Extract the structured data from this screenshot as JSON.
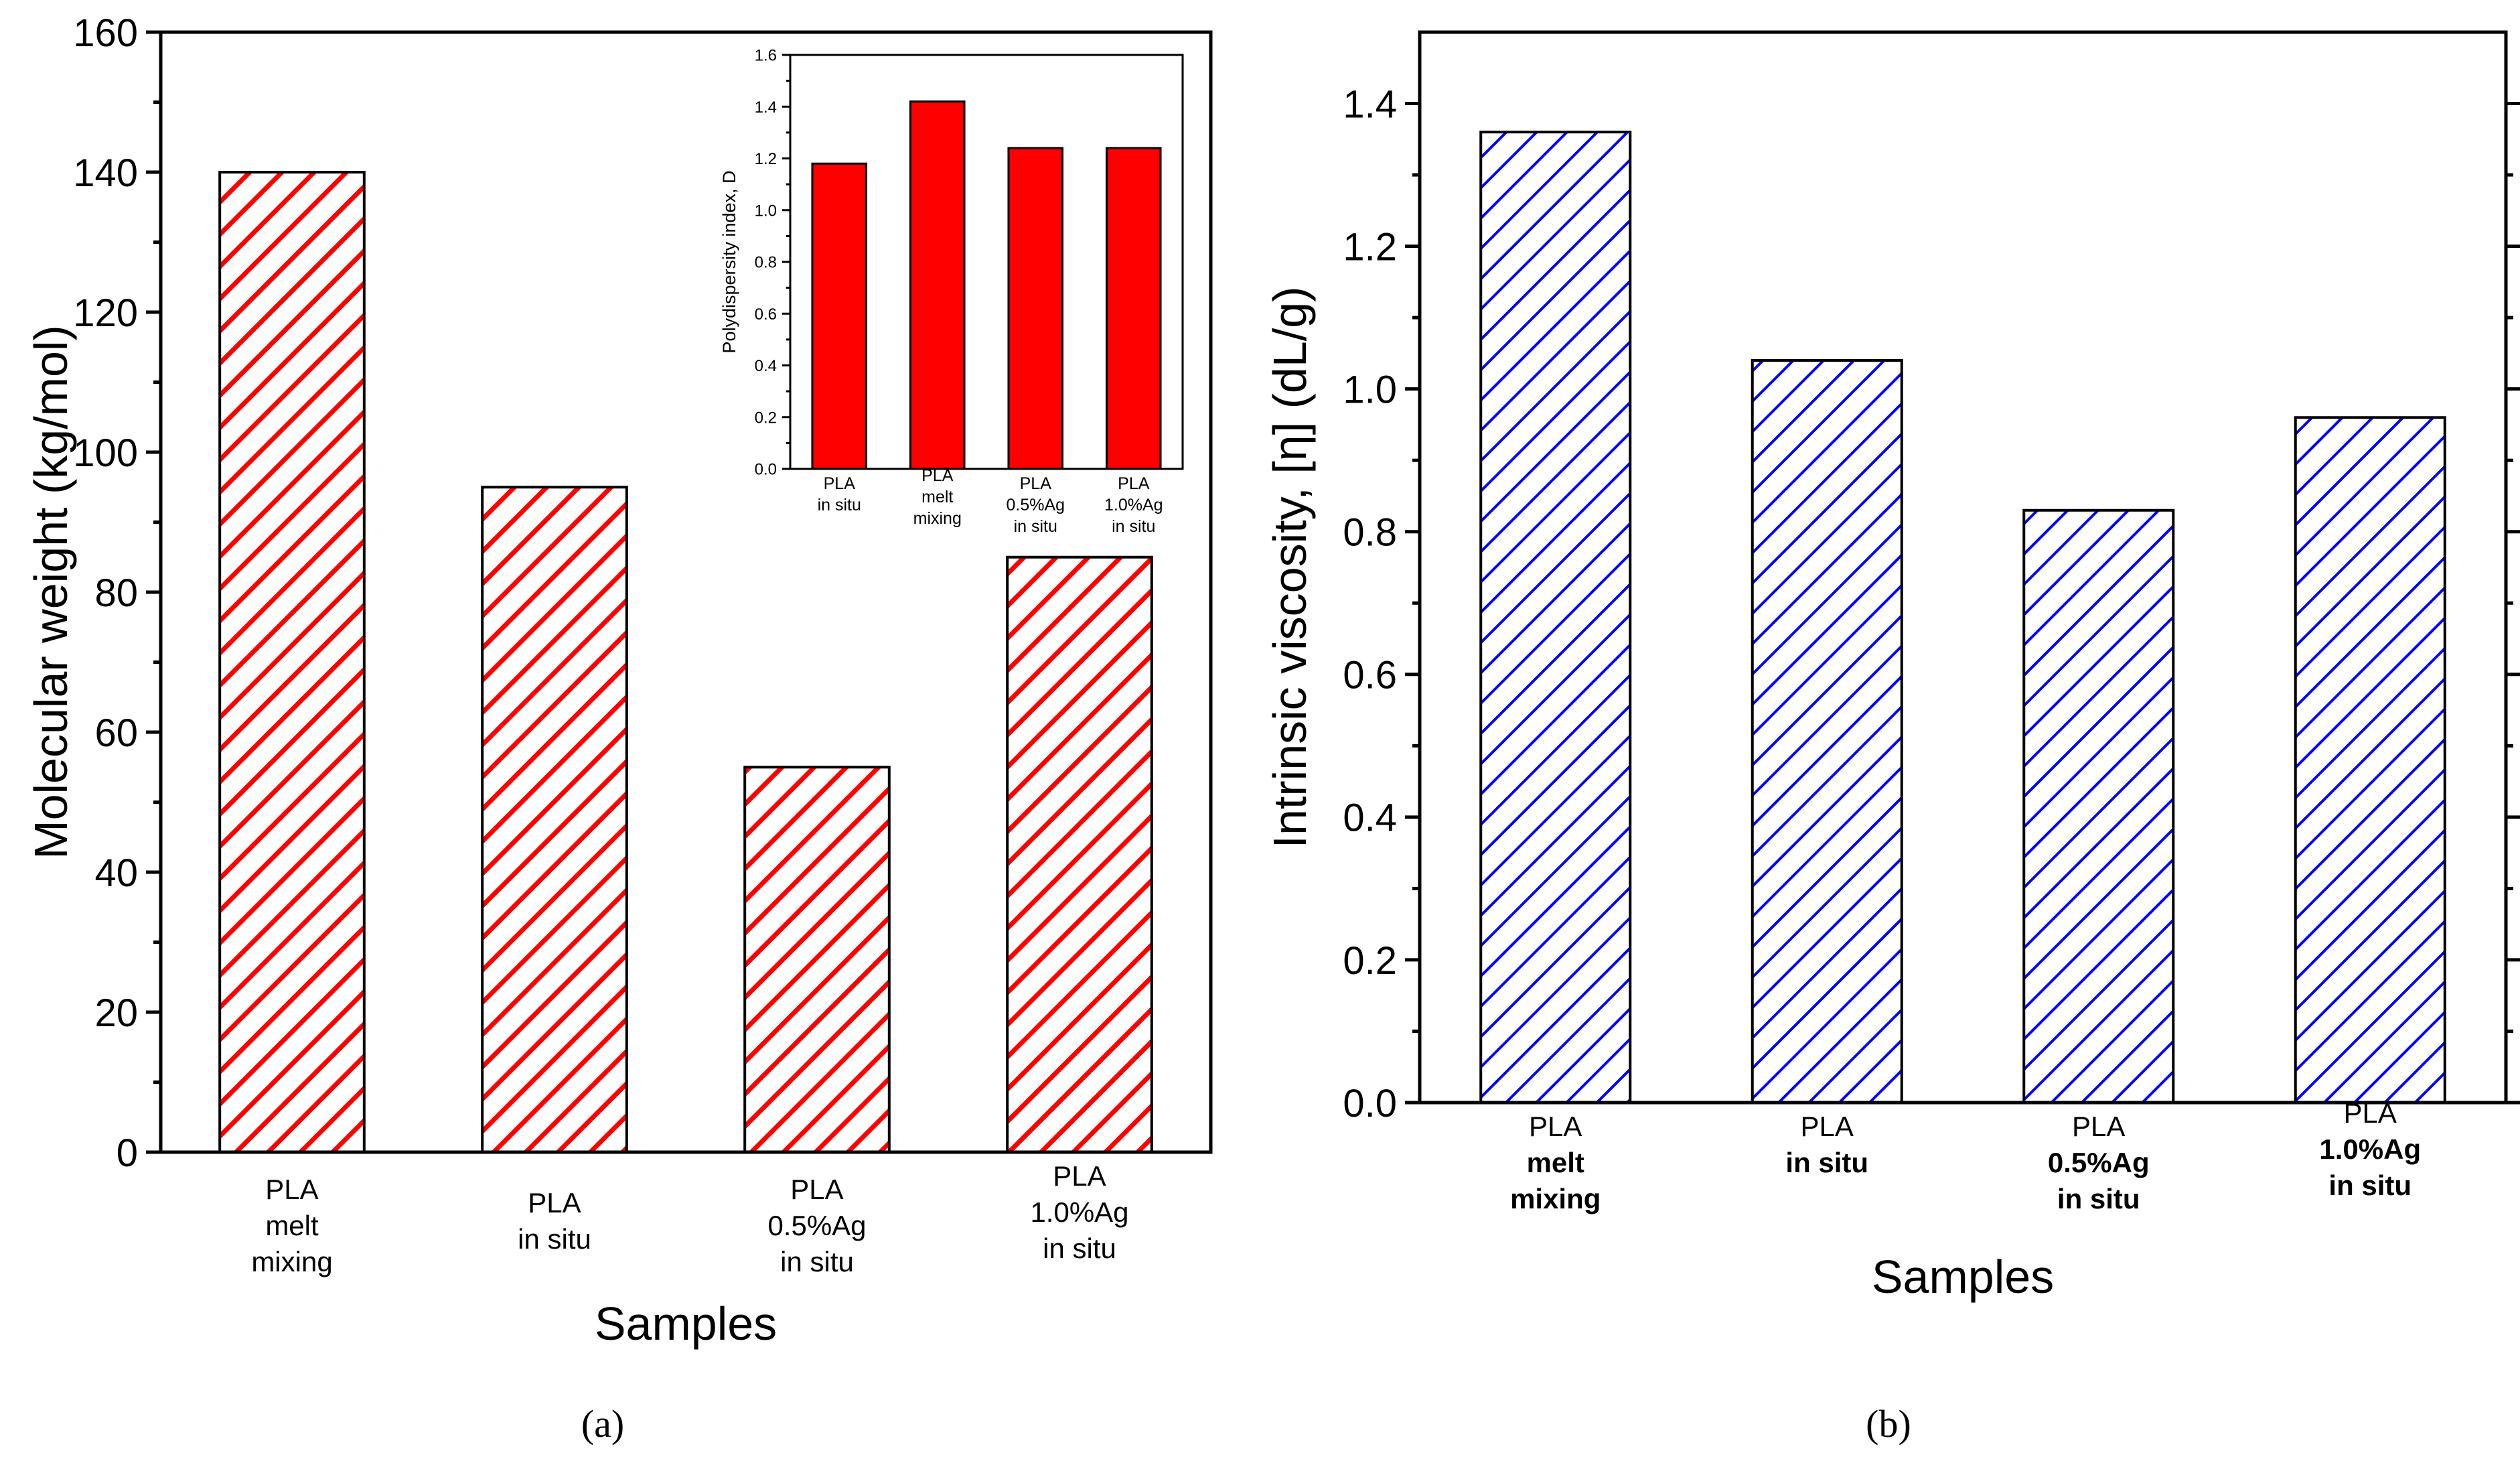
{
  "chart_data": [
    {
      "panel": "(a)",
      "type": "bar",
      "categories": [
        [
          "PLA",
          "melt",
          "mixing"
        ],
        [
          "PLA",
          "in situ"
        ],
        [
          "PLA",
          "0.5%Ag",
          "in situ"
        ],
        [
          "PLA",
          "1.0%Ag",
          "in situ"
        ]
      ],
      "values": [
        140,
        95,
        55,
        85
      ],
      "xlabel": "Samples",
      "ylabel": "Molecular weight (kg/mol)",
      "ylim": [
        0,
        160
      ],
      "yticks": [
        0,
        20,
        40,
        60,
        80,
        100,
        120,
        140,
        160
      ],
      "color": "#ff0000",
      "fill": "diagonal hatch",
      "grid": false,
      "inset": {
        "type": "bar",
        "categories": [
          [
            "PLA",
            "in situ"
          ],
          [
            "PLA",
            "melt",
            "mixing"
          ],
          [
            "PLA",
            "0.5%Ag",
            "in situ"
          ],
          [
            "PLA",
            "1.0%Ag",
            "in situ"
          ]
        ],
        "values": [
          1.18,
          1.42,
          1.24,
          1.24
        ],
        "ylabel": "Polydispersity index, D",
        "ylim": [
          0,
          1.6
        ],
        "yticks": [
          "0.0",
          "0.2",
          "0.4",
          "0.6",
          "0.8",
          "1.0",
          "1.2",
          "1.4",
          "1.6"
        ],
        "color": "#ff0000",
        "fill": "solid"
      }
    },
    {
      "panel": "(b)",
      "type": "bar",
      "categories": [
        [
          "PLA",
          "melt",
          "mixing"
        ],
        [
          "PLA",
          "in situ"
        ],
        [
          "PLA",
          "0.5%Ag",
          "in situ"
        ],
        [
          "PLA",
          "1.0%Ag",
          "in situ"
        ]
      ],
      "values": [
        1.36,
        1.04,
        0.83,
        0.96
      ],
      "xlabel": "Samples",
      "ylabel": "Intrinsic viscosity, [η] (dL/g)",
      "ylim": [
        0,
        1.5
      ],
      "yticks": [
        "0.0",
        "0.2",
        "0.4",
        "0.6",
        "0.8",
        "1.0",
        "1.2",
        "1.4"
      ],
      "color": "#0000ff",
      "fill": "diagonal hatch",
      "grid": false
    }
  ],
  "captions": {
    "a": "(a)",
    "b": "(b)"
  }
}
